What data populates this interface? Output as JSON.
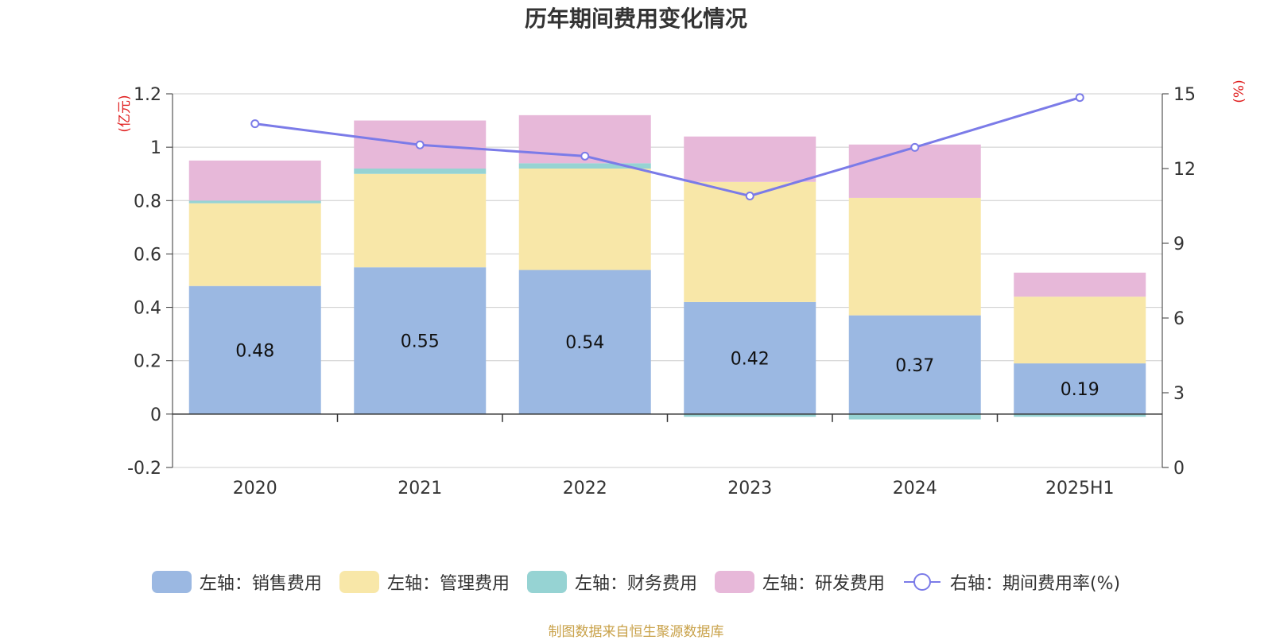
{
  "chart_data": {
    "type": "bar",
    "title": "历年期间费用变化情况",
    "categories": [
      "2020",
      "2021",
      "2022",
      "2023",
      "2024",
      "2025H1"
    ],
    "left_axis": {
      "unit_label": "(亿元)",
      "ylim": [
        -0.2,
        1.2
      ],
      "ticks": [
        "-0.2",
        "0",
        "0.2",
        "0.4",
        "0.6",
        "0.8",
        "1",
        "1.2"
      ]
    },
    "right_axis": {
      "unit_label": "(%)",
      "ylim": [
        0,
        15
      ],
      "ticks": [
        "0",
        "3",
        "6",
        "9",
        "12",
        "15"
      ]
    },
    "series": [
      {
        "name": "左轴：销售费用",
        "axis": "left",
        "kind": "bar",
        "color": "#9bb8e2",
        "values": [
          0.48,
          0.55,
          0.54,
          0.42,
          0.37,
          0.19
        ],
        "labels": [
          "0.48",
          "0.55",
          "0.54",
          "0.42",
          "0.37",
          "0.19"
        ]
      },
      {
        "name": "左轴：管理费用",
        "axis": "left",
        "kind": "bar",
        "color": "#f8e7a8",
        "values": [
          0.31,
          0.35,
          0.38,
          0.45,
          0.44,
          0.25
        ]
      },
      {
        "name": "左轴：财务费用",
        "axis": "left",
        "kind": "bar",
        "color": "#96d3d3",
        "values": [
          0.01,
          0.02,
          0.02,
          -0.01,
          -0.02,
          -0.01
        ]
      },
      {
        "name": "左轴：研发费用",
        "axis": "left",
        "kind": "bar",
        "color": "#e7b8d9",
        "values": [
          0.15,
          0.18,
          0.18,
          0.17,
          0.2,
          0.09
        ]
      },
      {
        "name": "右轴：期间费用率(%)",
        "axis": "right",
        "kind": "line",
        "color": "#7b7be8",
        "values": [
          13.8,
          12.95,
          12.5,
          10.9,
          12.85,
          14.85
        ]
      }
    ],
    "grid": true,
    "legend_position": "bottom"
  },
  "footer_note": "制图数据来自恒生聚源数据库"
}
